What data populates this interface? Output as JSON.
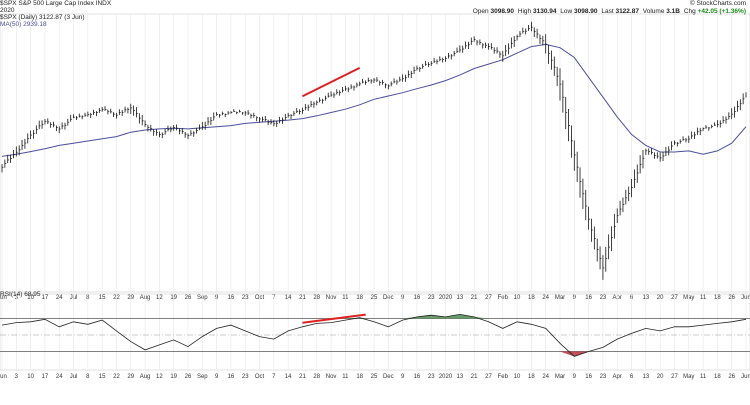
{
  "header": {
    "title": "$SPX S&P 500 Large Cap Index  INDX",
    "date_line": "2020",
    "series_label": "$SPX (Daily) 3122.87 (3 Jun)",
    "ma_label": "MA(50) 2939.18",
    "watermark": "© StockCharts.com",
    "ohlc": [
      {
        "label": "Open",
        "value": "3098.90"
      },
      {
        "label": "High",
        "value": "3130.94"
      },
      {
        "label": "Low",
        "value": "3098.90"
      },
      {
        "label": "Last",
        "value": "3122.87"
      },
      {
        "label": "Volume",
        "value": "3.1B"
      },
      {
        "label": "Chg",
        "value": "+42.05 (+1.36%)"
      }
    ]
  },
  "indicator": {
    "label": "RSI(14) 68.95"
  },
  "colors": {
    "price": "#111111",
    "ma": "#4a4f9c",
    "divergence": "#e02020",
    "rsi": "#222222",
    "overbought_fill": "#4c8a4c",
    "oversold_fill": "#b3303a",
    "grid": "#e6e6e6"
  },
  "chart_data": [
    {
      "type": "line",
      "panel": "price",
      "x": [
        "Jun",
        "3",
        "10",
        "17",
        "24",
        "Jul",
        "8",
        "15",
        "22",
        "29",
        "Aug",
        "12",
        "19",
        "26",
        "Sep",
        "9",
        "16",
        "23",
        "Oct",
        "7",
        "14",
        "21",
        "28",
        "Nov",
        "11",
        "18",
        "25",
        "Dec",
        "9",
        "16",
        "23",
        "2020",
        "13",
        "21",
        "27",
        "Feb",
        "10",
        "18",
        "24",
        "Mar",
        "9",
        "16",
        "23",
        "Apr",
        "6",
        "13",
        "20",
        "27",
        "May",
        "11",
        "18",
        "26",
        "Jun"
      ],
      "series": [
        {
          "name": "$SPX",
          "style": "hlc-bars",
          "values": [
            2745,
            2806,
            2886,
            2950,
            2918,
            2964,
            2978,
            3004,
            2980,
            3015,
            2932,
            2888,
            2922,
            2888,
            2920,
            2979,
            2990,
            2990,
            2965,
            2935,
            2975,
            3000,
            3040,
            3065,
            3095,
            3120,
            3140,
            3115,
            3140,
            3190,
            3215,
            3240,
            3270,
            3320,
            3290,
            3250,
            3340,
            3375,
            3300,
            3120,
            2800,
            2500,
            2280,
            2520,
            2650,
            2820,
            2780,
            2850,
            2870,
            2920,
            2930,
            2980,
            3070
          ]
        },
        {
          "name": "MA(50)",
          "style": "line",
          "values": [
            2790,
            2800,
            2812,
            2825,
            2840,
            2850,
            2860,
            2870,
            2880,
            2900,
            2910,
            2915,
            2918,
            2915,
            2920,
            2925,
            2930,
            2940,
            2945,
            2950,
            2955,
            2962,
            2975,
            2990,
            3005,
            3025,
            3050,
            3065,
            3080,
            3098,
            3115,
            3135,
            3160,
            3190,
            3210,
            3230,
            3260,
            3290,
            3300,
            3285,
            3240,
            3150,
            3060,
            2970,
            2890,
            2840,
            2810,
            2810,
            2815,
            2800,
            2815,
            2850,
            2925
          ]
        }
      ],
      "annotations": [
        "divergence line Jan–Feb 2020 highs"
      ],
      "grid": true,
      "x_axis_position": "bottom"
    },
    {
      "type": "line",
      "panel": "indicator",
      "x": [
        "Jun",
        "3",
        "10",
        "17",
        "24",
        "Jul",
        "8",
        "15",
        "22",
        "29",
        "Aug",
        "12",
        "19",
        "26",
        "Sep",
        "9",
        "16",
        "23",
        "Oct",
        "7",
        "14",
        "21",
        "28",
        "Nov",
        "11",
        "18",
        "25",
        "Dec",
        "9",
        "16",
        "23",
        "2020",
        "13",
        "21",
        "27",
        "Feb",
        "10",
        "18",
        "24",
        "Mar",
        "9",
        "16",
        "23",
        "Apr",
        "6",
        "13",
        "20",
        "27",
        "May",
        "11",
        "18",
        "26",
        "Jun"
      ],
      "series": [
        {
          "name": "RSI(14)",
          "values": [
            62,
            65,
            66,
            69,
            60,
            66,
            63,
            68,
            55,
            42,
            32,
            38,
            44,
            36,
            48,
            58,
            62,
            55,
            48,
            45,
            55,
            60,
            64,
            65,
            68,
            71,
            66,
            60,
            68,
            72,
            74,
            72,
            75,
            72,
            66,
            58,
            66,
            63,
            58,
            40,
            24,
            30,
            35,
            45,
            52,
            58,
            55,
            60,
            60,
            62,
            64,
            66,
            69
          ]
        }
      ],
      "levels": [
        70,
        30
      ],
      "ylim": [
        10,
        90
      ],
      "annotations": [
        "divergence line Jan–Feb 2020"
      ],
      "grid": true,
      "x_axis_position": "bottom"
    }
  ]
}
